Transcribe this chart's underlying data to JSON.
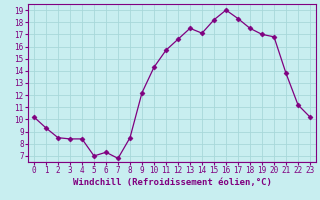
{
  "x": [
    0,
    1,
    2,
    3,
    4,
    5,
    6,
    7,
    8,
    9,
    10,
    11,
    12,
    13,
    14,
    15,
    16,
    17,
    18,
    19,
    20,
    21,
    22,
    23
  ],
  "y": [
    10.2,
    9.3,
    8.5,
    8.4,
    8.4,
    7.0,
    7.3,
    6.8,
    8.5,
    12.2,
    14.3,
    15.7,
    16.6,
    17.5,
    17.1,
    18.2,
    19.0,
    18.3,
    17.5,
    17.0,
    16.8,
    13.8,
    11.2,
    10.2
  ],
  "line_color": "#800080",
  "marker": "D",
  "marker_size": 2.5,
  "xlabel": "Windchill (Refroidissement éolien,°C)",
  "xlim": [
    -0.5,
    23.5
  ],
  "ylim": [
    6.5,
    19.5
  ],
  "yticks": [
    7,
    8,
    9,
    10,
    11,
    12,
    13,
    14,
    15,
    16,
    17,
    18,
    19
  ],
  "xticks": [
    0,
    1,
    2,
    3,
    4,
    5,
    6,
    7,
    8,
    9,
    10,
    11,
    12,
    13,
    14,
    15,
    16,
    17,
    18,
    19,
    20,
    21,
    22,
    23
  ],
  "xtick_labels": [
    "0",
    "1",
    "2",
    "3",
    "4",
    "5",
    "6",
    "7",
    "8",
    "9",
    "10",
    "11",
    "12",
    "13",
    "14",
    "15",
    "16",
    "17",
    "18",
    "19",
    "20",
    "21",
    "22",
    "23"
  ],
  "background_color": "#c8eef0",
  "grid_color": "#a8d8da",
  "spine_color": "#800080",
  "tick_fontsize": 5.5,
  "xlabel_fontsize": 6.5
}
